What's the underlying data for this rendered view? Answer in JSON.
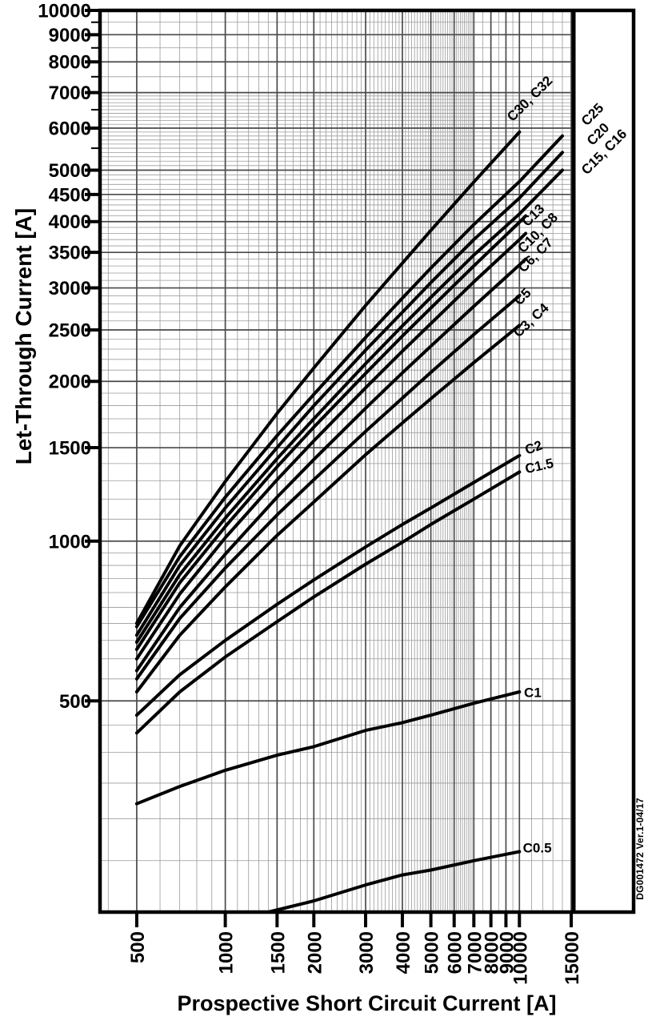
{
  "chart_data": {
    "type": "line",
    "title": "",
    "xlabel": "Prospective Short Circuit Current [A]",
    "ylabel": "Let-Through Current [A]",
    "x_scale": "log",
    "y_scale": "log",
    "xlim": [
      375,
      15000
    ],
    "ylim": [
      200,
      10000
    ],
    "x_ticks": [
      500,
      1000,
      1500,
      2000,
      3000,
      4000,
      5000,
      6000,
      7000,
      8000,
      9000,
      10000,
      15000
    ],
    "y_ticks": [
      10000,
      9000,
      8000,
      7000,
      6000,
      5000,
      4500,
      4000,
      3500,
      3000,
      2500,
      2000,
      1500,
      1000,
      500
    ],
    "y_minor_ticks": [
      5500,
      6500,
      7500,
      8500,
      9500
    ],
    "grid": {
      "on": true,
      "x_minor_rules": [
        [
          400,
          1000,
          100
        ],
        [
          1000,
          7000,
          100
        ],
        [
          7000,
          10000,
          500
        ],
        [
          10000,
          15000,
          1000
        ]
      ],
      "y_minor_rules": [
        [
          200,
          1000,
          50
        ],
        [
          1000,
          7000,
          100
        ],
        [
          7000,
          10000,
          500
        ]
      ]
    },
    "legend_position": "curve-end-labels",
    "colors": {
      "curve": "#000000",
      "grid_minor": "#9a9a9a",
      "grid_major": "#4a4a4a",
      "frame": "#000000",
      "text": "#000000",
      "background": "#ffffff"
    },
    "watermark": "DG001472  Ver.1-04/17",
    "series": [
      {
        "name": "C30, C32",
        "points": [
          [
            500,
            700
          ],
          [
            700,
            980
          ],
          [
            1000,
            1295
          ],
          [
            1500,
            1740
          ],
          [
            2000,
            2120
          ],
          [
            3000,
            2780
          ],
          [
            4000,
            3340
          ],
          [
            5000,
            3850
          ],
          [
            7000,
            4750
          ],
          [
            10000,
            5900
          ]
        ],
        "label": {
          "text": "C30, C32",
          "x": 10900,
          "y": 6800,
          "rot": -45
        }
      },
      {
        "name": "C25",
        "points": [
          [
            500,
            690
          ],
          [
            700,
            935
          ],
          [
            1000,
            1210
          ],
          [
            1500,
            1580
          ],
          [
            2000,
            1890
          ],
          [
            3000,
            2420
          ],
          [
            4000,
            2870
          ],
          [
            5000,
            3270
          ],
          [
            7000,
            3950
          ],
          [
            10000,
            4760
          ],
          [
            14000,
            5800
          ]
        ],
        "label": {
          "text": "C25",
          "x": 17800,
          "y": 6350,
          "rot": -45
        }
      },
      {
        "name": "C20",
        "points": [
          [
            500,
            665
          ],
          [
            700,
            900
          ],
          [
            1000,
            1155
          ],
          [
            1500,
            1500
          ],
          [
            2000,
            1800
          ],
          [
            3000,
            2290
          ],
          [
            4000,
            2700
          ],
          [
            5000,
            3070
          ],
          [
            7000,
            3700
          ],
          [
            10000,
            4430
          ],
          [
            14000,
            5400
          ]
        ],
        "label": {
          "text": "C20",
          "x": 18600,
          "y": 5830,
          "rot": -45
        }
      },
      {
        "name": "C15, C16",
        "points": [
          [
            500,
            645
          ],
          [
            700,
            865
          ],
          [
            1000,
            1105
          ],
          [
            1500,
            1430
          ],
          [
            2000,
            1700
          ],
          [
            3000,
            2160
          ],
          [
            4000,
            2545
          ],
          [
            5000,
            2880
          ],
          [
            7000,
            3460
          ],
          [
            10000,
            4135
          ],
          [
            14000,
            5000
          ]
        ],
        "label": {
          "text": "C15, C16",
          "x": 19500,
          "y": 5400,
          "rot": -45
        }
      },
      {
        "name": "C13",
        "points": [
          [
            500,
            625
          ],
          [
            700,
            835
          ],
          [
            1000,
            1065
          ],
          [
            1500,
            1380
          ],
          [
            2000,
            1640
          ],
          [
            3000,
            2070
          ],
          [
            4000,
            2435
          ],
          [
            5000,
            2750
          ],
          [
            7000,
            3300
          ],
          [
            10000,
            3990
          ],
          [
            10500,
            4100
          ]
        ],
        "label": {
          "text": "C13",
          "x": 11200,
          "y": 4100,
          "rot": -45
        }
      },
      {
        "name": "C10, C8",
        "points": [
          [
            500,
            600
          ],
          [
            700,
            795
          ],
          [
            1000,
            1015
          ],
          [
            1500,
            1305
          ],
          [
            2000,
            1545
          ],
          [
            3000,
            1945
          ],
          [
            4000,
            2280
          ],
          [
            5000,
            2570
          ],
          [
            7000,
            3080
          ],
          [
            10000,
            3700
          ],
          [
            10500,
            3800
          ]
        ],
        "label": {
          "text": "C10, C8",
          "x": 11600,
          "y": 3800,
          "rot": -45
        }
      },
      {
        "name": "C6, C7",
        "points": [
          [
            500,
            570
          ],
          [
            700,
            750
          ],
          [
            1000,
            945
          ],
          [
            1500,
            1210
          ],
          [
            2000,
            1425
          ],
          [
            3000,
            1780
          ],
          [
            4000,
            2075
          ],
          [
            5000,
            2330
          ],
          [
            7000,
            2770
          ],
          [
            10000,
            3315
          ],
          [
            10500,
            3400
          ]
        ],
        "label": {
          "text": "C6, C7",
          "x": 11400,
          "y": 3450,
          "rot": -45
        }
      },
      {
        "name": "C5",
        "points": [
          [
            500,
            550
          ],
          [
            700,
            715
          ],
          [
            1000,
            890
          ],
          [
            1500,
            1120
          ],
          [
            2000,
            1305
          ],
          [
            3000,
            1610
          ],
          [
            4000,
            1860
          ],
          [
            5000,
            2080
          ],
          [
            7000,
            2450
          ],
          [
            10000,
            2900
          ]
        ],
        "label": {
          "text": "C5",
          "x": 10300,
          "y": 2880,
          "rot": -45
        }
      },
      {
        "name": "C3, C4",
        "points": [
          [
            500,
            520
          ],
          [
            700,
            665
          ],
          [
            1000,
            820
          ],
          [
            1500,
            1025
          ],
          [
            2000,
            1185
          ],
          [
            3000,
            1455
          ],
          [
            4000,
            1670
          ],
          [
            5000,
            1855
          ],
          [
            7000,
            2170
          ],
          [
            10000,
            2550
          ]
        ],
        "label": {
          "text": "C3, C4",
          "x": 11000,
          "y": 2600,
          "rot": -43
        }
      },
      {
        "name": "C2",
        "points": [
          [
            500,
            470
          ],
          [
            700,
            560
          ],
          [
            1000,
            650
          ],
          [
            1500,
            760
          ],
          [
            2000,
            845
          ],
          [
            3000,
            975
          ],
          [
            4000,
            1075
          ],
          [
            5000,
            1155
          ],
          [
            7000,
            1290
          ],
          [
            10000,
            1450
          ]
        ],
        "label": {
          "text": "C2",
          "x": 11200,
          "y": 1495,
          "rot": -20
        }
      },
      {
        "name": "C1.5",
        "points": [
          [
            500,
            435
          ],
          [
            700,
            520
          ],
          [
            1000,
            605
          ],
          [
            1500,
            705
          ],
          [
            2000,
            785
          ],
          [
            3000,
            905
          ],
          [
            4000,
            995
          ],
          [
            5000,
            1075
          ],
          [
            7000,
            1200
          ],
          [
            10000,
            1350
          ]
        ],
        "label": {
          "text": "C1.5",
          "x": 11700,
          "y": 1380,
          "rot": -13
        }
      },
      {
        "name": "C1",
        "points": [
          [
            500,
            320
          ],
          [
            700,
            345
          ],
          [
            1000,
            370
          ],
          [
            1500,
            395
          ],
          [
            2000,
            410
          ],
          [
            3000,
            440
          ],
          [
            4000,
            455
          ],
          [
            5000,
            470
          ],
          [
            7000,
            495
          ],
          [
            10000,
            520
          ]
        ],
        "label": {
          "text": "C1",
          "x": 11100,
          "y": 516,
          "rot": 0
        }
      },
      {
        "name": "C0.5",
        "points": [
          [
            1400,
            200
          ],
          [
            2000,
            210
          ],
          [
            3000,
            225
          ],
          [
            4000,
            235
          ],
          [
            5000,
            240
          ],
          [
            7000,
            250
          ],
          [
            10000,
            260
          ]
        ],
        "label": {
          "text": "C0.5",
          "x": 11500,
          "y": 263,
          "rot": 0
        }
      }
    ]
  }
}
